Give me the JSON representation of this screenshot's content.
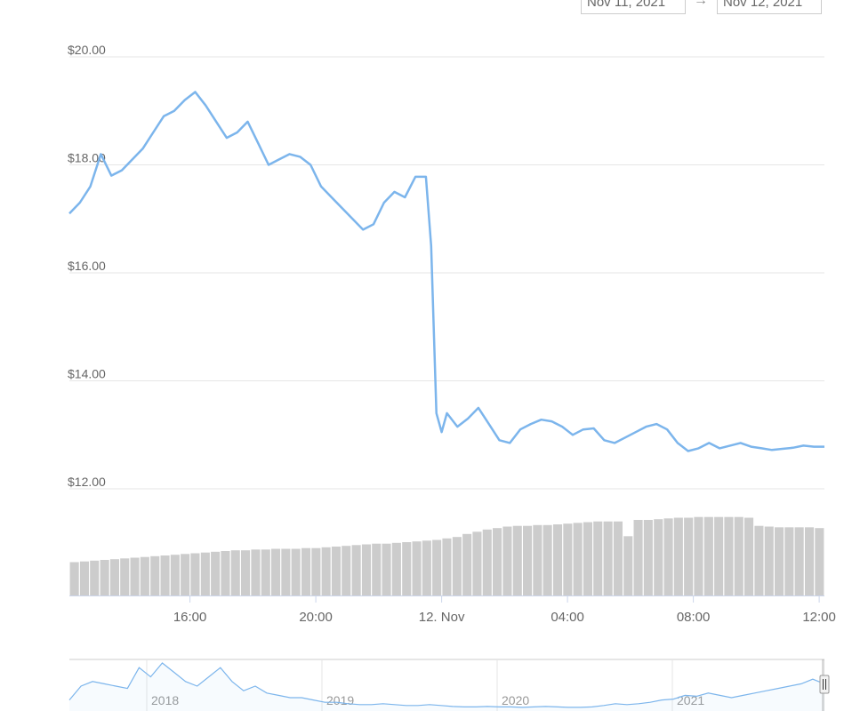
{
  "range_selector": {
    "from": "Nov 11, 2021",
    "arrow": "→",
    "to": "Nov 12, 2021"
  },
  "colors": {
    "line": "#7cb5ec",
    "grid": "#e6e6e6",
    "volume": "#cccccc",
    "navigator_line": "#7cb5ec"
  },
  "chart_data": [
    {
      "type": "line",
      "title": "",
      "xlabel": "",
      "ylabel": "",
      "x_ticks": [
        "16:00",
        "20:00",
        "12. Nov",
        "04:00",
        "08:00",
        "12:00"
      ],
      "y_ticks": [
        "$12.00",
        "$14.00",
        "$16.00",
        "$18.00",
        "$20.00"
      ],
      "ylim": [
        12,
        20
      ],
      "xlim": [
        "Nov 11 12:10",
        "Nov 12 12:10"
      ],
      "grid": true,
      "series": [
        {
          "x": [
            "Nov 11 12:10",
            "Nov 11 12:30",
            "Nov 11 12:50",
            "Nov 11 13:10",
            "Nov 11 13:30",
            "Nov 11 13:50",
            "Nov 11 14:10",
            "Nov 11 14:30",
            "Nov 11 14:50",
            "Nov 11 15:10",
            "Nov 11 15:30",
            "Nov 11 15:50",
            "Nov 11 16:10",
            "Nov 11 16:30",
            "Nov 11 16:50",
            "Nov 11 17:10",
            "Nov 11 17:30",
            "Nov 11 17:50",
            "Nov 11 18:10",
            "Nov 11 18:30",
            "Nov 11 18:50",
            "Nov 11 19:10",
            "Nov 11 19:30",
            "Nov 11 19:50",
            "Nov 11 20:10",
            "Nov 11 20:30",
            "Nov 11 20:50",
            "Nov 11 21:10",
            "Nov 11 21:30",
            "Nov 11 21:50",
            "Nov 11 22:10",
            "Nov 11 22:30",
            "Nov 11 22:50",
            "Nov 11 23:10",
            "Nov 11 23:30",
            "Nov 11 23:40",
            "Nov 11 23:50",
            "Nov 12 00:00",
            "Nov 12 00:10",
            "Nov 12 00:30",
            "Nov 12 00:50",
            "Nov 12 01:10",
            "Nov 12 01:30",
            "Nov 12 01:50",
            "Nov 12 02:10",
            "Nov 12 02:30",
            "Nov 12 02:50",
            "Nov 12 03:10",
            "Nov 12 03:30",
            "Nov 12 03:50",
            "Nov 12 04:10",
            "Nov 12 04:30",
            "Nov 12 04:50",
            "Nov 12 05:10",
            "Nov 12 05:30",
            "Nov 12 05:50",
            "Nov 12 06:10",
            "Nov 12 06:30",
            "Nov 12 06:50",
            "Nov 12 07:10",
            "Nov 12 07:30",
            "Nov 12 07:50",
            "Nov 12 08:10",
            "Nov 12 08:30",
            "Nov 12 08:50",
            "Nov 12 09:10",
            "Nov 12 09:30",
            "Nov 12 09:50",
            "Nov 12 10:10",
            "Nov 12 10:30",
            "Nov 12 10:50",
            "Nov 12 11:10",
            "Nov 12 11:30",
            "Nov 12 11:50",
            "Nov 12 12:10"
          ],
          "values": [
            17.1,
            17.3,
            17.6,
            18.2,
            17.8,
            17.9,
            18.1,
            18.3,
            18.6,
            18.9,
            19.0,
            19.2,
            19.35,
            19.1,
            18.8,
            18.5,
            18.6,
            18.8,
            18.4,
            18.0,
            18.1,
            18.2,
            18.15,
            18.0,
            17.6,
            17.4,
            17.2,
            17.0,
            16.8,
            16.9,
            17.3,
            17.5,
            17.4,
            17.78,
            17.78,
            16.5,
            13.4,
            13.05,
            13.4,
            13.15,
            13.3,
            13.5,
            13.2,
            12.9,
            12.85,
            13.1,
            13.2,
            13.28,
            13.25,
            13.15,
            13.0,
            13.1,
            13.12,
            12.9,
            12.85,
            12.95,
            13.05,
            13.15,
            13.2,
            13.1,
            12.85,
            12.7,
            12.75,
            12.85,
            12.75,
            12.8,
            12.85,
            12.78,
            12.75,
            12.72,
            12.74,
            12.76,
            12.8,
            12.78,
            12.78
          ]
        }
      ]
    },
    {
      "type": "bar",
      "title": "",
      "ylabel": "",
      "xlabel": "",
      "values": [
        4.5,
        4.6,
        4.7,
        4.8,
        4.9,
        5.0,
        5.1,
        5.2,
        5.3,
        5.4,
        5.5,
        5.6,
        5.7,
        5.8,
        5.9,
        6.0,
        6.1,
        6.1,
        6.2,
        6.2,
        6.3,
        6.3,
        6.3,
        6.4,
        6.4,
        6.5,
        6.6,
        6.7,
        6.8,
        6.9,
        7.0,
        7.0,
        7.1,
        7.2,
        7.3,
        7.4,
        7.5,
        7.7,
        7.9,
        8.3,
        8.6,
        8.9,
        9.1,
        9.3,
        9.4,
        9.4,
        9.5,
        9.5,
        9.6,
        9.7,
        9.8,
        9.9,
        10.0,
        10.0,
        10.0,
        8.0,
        10.2,
        10.2,
        10.3,
        10.4,
        10.5,
        10.5,
        10.6,
        10.6,
        10.6,
        10.6,
        10.6,
        10.5,
        9.4,
        9.3,
        9.2,
        9.2,
        9.2,
        9.2,
        9.1
      ],
      "ylim": [
        0,
        12
      ]
    },
    {
      "type": "area",
      "title": "",
      "x_ticks": [
        "2018",
        "2019",
        "2020",
        "2021"
      ],
      "values": [
        0.2,
        0.5,
        0.6,
        0.55,
        0.5,
        0.45,
        0.9,
        0.7,
        1.0,
        0.8,
        0.6,
        0.5,
        0.7,
        0.9,
        0.6,
        0.4,
        0.5,
        0.35,
        0.3,
        0.25,
        0.25,
        0.2,
        0.15,
        0.15,
        0.12,
        0.1,
        0.1,
        0.12,
        0.1,
        0.08,
        0.08,
        0.1,
        0.08,
        0.06,
        0.05,
        0.05,
        0.06,
        0.05,
        0.05,
        0.04,
        0.05,
        0.06,
        0.05,
        0.04,
        0.04,
        0.05,
        0.08,
        0.12,
        0.1,
        0.12,
        0.15,
        0.2,
        0.22,
        0.3,
        0.28,
        0.35,
        0.3,
        0.25,
        0.3,
        0.35,
        0.4,
        0.45,
        0.5,
        0.55,
        0.65,
        0.55
      ]
    }
  ]
}
